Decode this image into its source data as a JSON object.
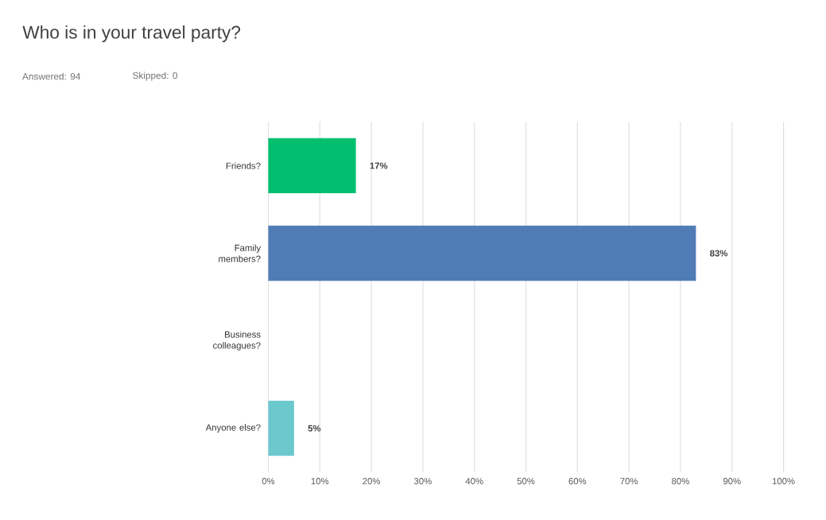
{
  "chart_data": {
    "type": "bar",
    "orientation": "horizontal",
    "title": "Who is in your travel party?",
    "annotations": [
      "Answered: 94",
      "Skipped: 0"
    ],
    "categories": [
      "Friends?",
      "Family members?",
      "Business colleagues?",
      "Anyone else?"
    ],
    "values": [
      17,
      83,
      0,
      5
    ],
    "value_labels": [
      "17%",
      "83%",
      null,
      "5%"
    ],
    "colors": [
      "#00bf6f",
      "#507cb6",
      "#a8a8a8",
      "#6bc8cd"
    ],
    "xlim": [
      0,
      100
    ],
    "xticks": [
      {
        "value": 0,
        "label": "0%"
      },
      {
        "value": 10,
        "label": "10%"
      },
      {
        "value": 20,
        "label": "20%"
      },
      {
        "value": 30,
        "label": "30%"
      },
      {
        "value": 40,
        "label": "40%"
      },
      {
        "value": 50,
        "label": "50%"
      },
      {
        "value": 60,
        "label": "60%"
      },
      {
        "value": 70,
        "label": "70%"
      },
      {
        "value": 80,
        "label": "80%"
      },
      {
        "value": 90,
        "label": "90%"
      },
      {
        "value": 100,
        "label": "100%"
      }
    ],
    "grid": "x"
  }
}
